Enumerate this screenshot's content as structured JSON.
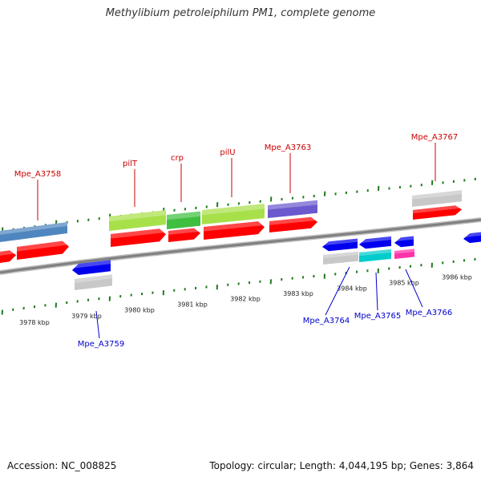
{
  "title": "Methylibium petroleiphilum PM1, complete genome",
  "footer": {
    "accession": "Accession: NC_008825",
    "topology": "Topology: circular; Length: 4,044,195 bp; Genes: 3,864"
  },
  "colors": {
    "backbone": "#808080",
    "tick": "#1e7a1e",
    "forward_label": "#cc0000",
    "reverse_label": "#0000cc",
    "cds_red": "#ff0000",
    "cds_blue": "#0000ee",
    "gene_grey": "#c8c8c8",
    "gene_steelblue": "#4f86bf",
    "gene_lightgreen": "#a8e04a",
    "gene_green": "#3fbf3f",
    "gene_purple": "#6a5acd",
    "gene_cyan": "#00cccc",
    "gene_pink": "#ff33aa"
  },
  "ticks": {
    "labels": [
      "3978 kbp",
      "3979 kbp",
      "3980 kbp",
      "3981 kbp",
      "3982 kbp",
      "3983 kbp",
      "3984 kbp",
      "3985 kbp",
      "3986 kbp"
    ]
  },
  "genes": {
    "forward": [
      "Mpe_A3758",
      "pilT",
      "crp",
      "pilU",
      "Mpe_A3763",
      "Mpe_A3767"
    ],
    "reverse": [
      "Mpe_A3759",
      "Mpe_A3764",
      "Mpe_A3765",
      "Mpe_A3766"
    ]
  }
}
